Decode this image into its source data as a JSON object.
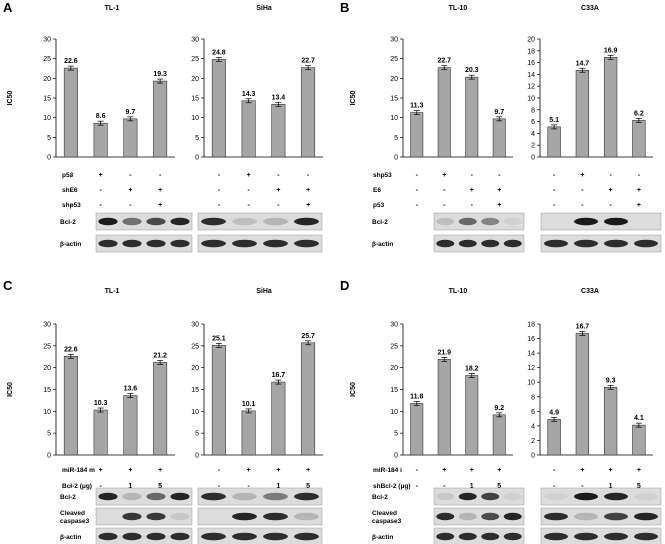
{
  "figure": {
    "panels": [
      {
        "letter": "A",
        "ylabel": "IC50",
        "conditions": [
          {
            "name": "p53",
            "values": [
              "-",
              "+",
              "-",
              "-"
            ]
          },
          {
            "name": "shE6",
            "values": [
              "-",
              "-",
              "+",
              "+"
            ]
          },
          {
            "name": "shp53",
            "values": [
              "-",
              "-",
              "-",
              "+"
            ]
          }
        ],
        "blot_labels": [
          "Bcl-2",
          "β-actin"
        ],
        "charts": [
          {
            "title": "TL-1",
            "ylim": [
              0,
              30
            ],
            "ticks": [
              0,
              5,
              10,
              15,
              20,
              25,
              30
            ],
            "values": [
              22.6,
              8.6,
              9.7,
              19.3
            ]
          },
          {
            "title": "SiHa",
            "ylim": [
              0,
              30
            ],
            "ticks": [
              0,
              5,
              10,
              15,
              20,
              25,
              30
            ],
            "values": [
              24.8,
              14.3,
              13.4,
              22.7
            ]
          }
        ]
      },
      {
        "letter": "B",
        "ylabel": "IC50",
        "conditions": [
          {
            "name": "shp53",
            "values": [
              "-",
              "+",
              "-",
              "-"
            ]
          },
          {
            "name": "E6",
            "values": [
              "-",
              "-",
              "+",
              "+"
            ]
          },
          {
            "name": "p53",
            "values": [
              "-",
              "-",
              "-",
              "+"
            ]
          }
        ],
        "blot_labels": [
          "Bcl-2",
          "β-actin"
        ],
        "charts": [
          {
            "title": "TL-10",
            "ylim": [
              0,
              30
            ],
            "ticks": [
              0,
              5,
              10,
              15,
              20,
              25,
              30
            ],
            "values": [
              11.3,
              22.7,
              20.3,
              9.7
            ]
          },
          {
            "title": "C33A",
            "ylim": [
              0,
              20
            ],
            "ticks": [
              0,
              2,
              4,
              6,
              8,
              10,
              12,
              14,
              16,
              18,
              20
            ],
            "values": [
              5.1,
              14.7,
              16.9,
              6.2
            ]
          }
        ]
      },
      {
        "letter": "C",
        "ylabel": "IC50",
        "conditions": [
          {
            "name": "miR-184 m",
            "values": [
              "-",
              "+",
              "+",
              "+"
            ]
          },
          {
            "name": "Bcl-2 (μg)",
            "values": [
              "-",
              "-",
              "1",
              "5"
            ]
          }
        ],
        "blot_labels": [
          "Bcl-2",
          "Cleaved caspase3",
          "β-actin"
        ],
        "charts": [
          {
            "title": "TL-1",
            "ylim": [
              0,
              30
            ],
            "ticks": [
              0,
              5,
              10,
              15,
              20,
              25,
              30
            ],
            "values": [
              22.6,
              10.3,
              13.6,
              21.2
            ]
          },
          {
            "title": "SiHa",
            "ylim": [
              0,
              30
            ],
            "ticks": [
              0,
              5,
              10,
              15,
              20,
              25,
              30
            ],
            "values": [
              25.1,
              10.1,
              16.7,
              25.7
            ]
          }
        ]
      },
      {
        "letter": "D",
        "ylabel": "IC50",
        "conditions": [
          {
            "name": "miR-184 i",
            "values": [
              "-",
              "+",
              "+",
              "+"
            ]
          },
          {
            "name": "shBcl-2 (μg)",
            "values": [
              "-",
              "-",
              "1",
              "5"
            ]
          }
        ],
        "blot_labels": [
          "Bcl-2",
          "Cleaved caspase3",
          "β-actin"
        ],
        "charts": [
          {
            "title": "TL-10",
            "ylim": [
              0,
              30
            ],
            "ticks": [
              0,
              5,
              10,
              15,
              20,
              25,
              30
            ],
            "values": [
              11.8,
              21.9,
              18.2,
              9.2
            ]
          },
          {
            "title": "C33A",
            "ylim": [
              0,
              18
            ],
            "ticks": [
              0,
              2,
              4,
              6,
              8,
              10,
              12,
              14,
              16,
              18
            ],
            "values": [
              4.9,
              16.7,
              9.3,
              4.1
            ]
          }
        ]
      }
    ]
  },
  "chart_data": [
    {
      "type": "bar",
      "panel": "A",
      "title": "TL-1",
      "ylabel": "IC50",
      "categories": [
        "1",
        "2",
        "3",
        "4"
      ],
      "values": [
        22.6,
        8.6,
        9.7,
        19.3
      ],
      "ylim": [
        0,
        30
      ]
    },
    {
      "type": "bar",
      "panel": "A",
      "title": "SiHa",
      "ylabel": "",
      "categories": [
        "1",
        "2",
        "3",
        "4"
      ],
      "values": [
        24.8,
        14.3,
        13.4,
        22.7
      ],
      "ylim": [
        0,
        30
      ]
    },
    {
      "type": "bar",
      "panel": "B",
      "title": "TL-10",
      "ylabel": "IC50",
      "categories": [
        "1",
        "2",
        "3",
        "4"
      ],
      "values": [
        11.3,
        22.7,
        20.3,
        9.7
      ],
      "ylim": [
        0,
        30
      ]
    },
    {
      "type": "bar",
      "panel": "B",
      "title": "C33A",
      "ylabel": "",
      "categories": [
        "1",
        "2",
        "3",
        "4"
      ],
      "values": [
        5.1,
        14.7,
        16.9,
        6.2
      ],
      "ylim": [
        0,
        20
      ]
    },
    {
      "type": "bar",
      "panel": "C",
      "title": "TL-1",
      "ylabel": "IC50",
      "categories": [
        "1",
        "2",
        "3",
        "4"
      ],
      "values": [
        22.6,
        10.3,
        13.6,
        21.2
      ],
      "ylim": [
        0,
        30
      ]
    },
    {
      "type": "bar",
      "panel": "C",
      "title": "SiHa",
      "ylabel": "",
      "categories": [
        "1",
        "2",
        "3",
        "4"
      ],
      "values": [
        25.1,
        10.1,
        16.7,
        25.7
      ],
      "ylim": [
        0,
        30
      ]
    },
    {
      "type": "bar",
      "panel": "D",
      "title": "TL-10",
      "ylabel": "IC50",
      "categories": [
        "1",
        "2",
        "3",
        "4"
      ],
      "values": [
        11.8,
        21.9,
        18.2,
        9.2
      ],
      "ylim": [
        0,
        30
      ]
    },
    {
      "type": "bar",
      "panel": "D",
      "title": "C33A",
      "ylabel": "",
      "categories": [
        "1",
        "2",
        "3",
        "4"
      ],
      "values": [
        4.9,
        16.7,
        9.3,
        4.1
      ],
      "ylim": [
        0,
        18
      ]
    }
  ],
  "style": {
    "bar_color": "#a6a6a6",
    "bar_edge": "#333333",
    "blot_bg": "#dcdcdc",
    "band_color": "#1a1a1a"
  }
}
